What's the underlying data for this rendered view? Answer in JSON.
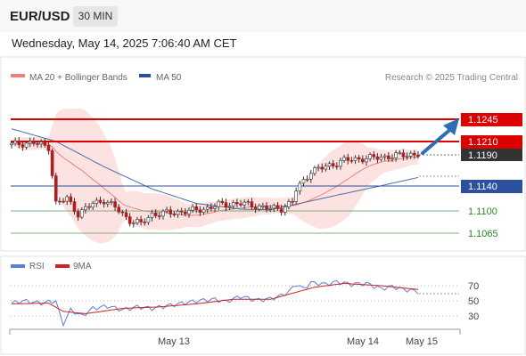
{
  "header": {
    "pair": "EUR/USD",
    "timeframe": "30 MIN"
  },
  "datetime": "Wednesday, May 14, 2025 7:06:40 AM CET",
  "legend": {
    "ma20": "MA 20 + Bollinger Bands",
    "ma50": "MA 50",
    "credit": "Research © 2025 Trading Central"
  },
  "rsi_legend": {
    "rsi": "RSI",
    "ma9": "9MA"
  },
  "colors": {
    "ma20": "#f08080",
    "band": "#fde2e2",
    "ma50": "#4a6fa5",
    "resistance": "#dd0000",
    "support_line": "#2c4f9e",
    "support_green": "#7fb07f",
    "pivot_label": "#2c4f9e",
    "target_label": "#228b22",
    "last_price": "#333333",
    "rsi": "#5b7fd6",
    "rsi_ma": "#cc2222",
    "arrow": "#2e6db4",
    "bull_candle": "#ffffff",
    "bear_candle": "#b11d1d"
  },
  "price_labels": [
    {
      "value": "1.1245",
      "kind": "resistance"
    },
    {
      "value": "1.1210",
      "kind": "resistance"
    },
    {
      "value": "1.1190",
      "kind": "last"
    },
    {
      "value": "1.1140",
      "kind": "pivot"
    },
    {
      "value": "1.1100",
      "kind": "target"
    },
    {
      "value": "1.1065",
      "kind": "target"
    }
  ],
  "rsi_ticks": [
    "70",
    "50",
    "30"
  ],
  "x_labels": [
    "May 13",
    "May 14",
    "May 15"
  ],
  "chart_data": {
    "type": "candlestick",
    "price_ylim": [
      1.1055,
      1.1265
    ],
    "levels": {
      "resistance": [
        1.1245,
        1.121
      ],
      "pivot": 1.114,
      "support": [
        1.11,
        1.1065
      ],
      "last": 1.119
    },
    "keypoints": [
      [
        0,
        1.1205
      ],
      [
        6,
        1.1208
      ],
      [
        10,
        1.1201
      ],
      [
        11,
        1.1158
      ],
      [
        12,
        1.1112
      ],
      [
        15,
        1.112
      ],
      [
        18,
        1.1095
      ],
      [
        22,
        1.1112
      ],
      [
        25,
        1.1117
      ],
      [
        28,
        1.1106
      ],
      [
        32,
        1.1085
      ],
      [
        35,
        1.108
      ],
      [
        38,
        1.1095
      ],
      [
        45,
        1.1098
      ],
      [
        52,
        1.1103
      ],
      [
        56,
        1.111
      ],
      [
        62,
        1.1112
      ],
      [
        70,
        1.1104
      ],
      [
        73,
        1.1104
      ],
      [
        76,
        1.1115
      ],
      [
        77,
        1.1133
      ],
      [
        79,
        1.1148
      ],
      [
        81,
        1.1163
      ],
      [
        85,
        1.117
      ],
      [
        90,
        1.118
      ],
      [
        95,
        1.1183
      ],
      [
        100,
        1.1185
      ],
      [
        107,
        1.1189
      ],
      [
        110,
        1.119
      ]
    ],
    "ma50": [
      [
        0,
        1.123
      ],
      [
        12,
        1.121
      ],
      [
        25,
        1.117
      ],
      [
        38,
        1.1135
      ],
      [
        50,
        1.1112
      ],
      [
        62,
        1.1103
      ],
      [
        70,
        1.1102
      ],
      [
        78,
        1.1112
      ],
      [
        88,
        1.1125
      ],
      [
        100,
        1.114
      ],
      [
        110,
        1.1153
      ]
    ],
    "rsi_ylim": [
      10,
      85
    ],
    "rsi": [
      [
        0,
        47
      ],
      [
        3,
        50
      ],
      [
        8,
        47
      ],
      [
        12,
        50
      ],
      [
        13,
        32
      ],
      [
        14,
        20
      ],
      [
        16,
        38
      ],
      [
        19,
        30
      ],
      [
        22,
        40
      ],
      [
        26,
        43
      ],
      [
        30,
        38
      ],
      [
        34,
        42
      ],
      [
        38,
        40
      ],
      [
        44,
        45
      ],
      [
        50,
        50
      ],
      [
        55,
        52
      ],
      [
        58,
        49
      ],
      [
        62,
        56
      ],
      [
        66,
        51
      ],
      [
        69,
        52
      ],
      [
        72,
        55
      ],
      [
        75,
        62
      ],
      [
        77,
        72
      ],
      [
        79,
        66
      ],
      [
        81,
        74
      ],
      [
        85,
        72
      ],
      [
        88,
        75
      ],
      [
        92,
        72
      ],
      [
        96,
        73
      ],
      [
        100,
        66
      ],
      [
        103,
        69
      ],
      [
        106,
        65
      ],
      [
        108,
        64
      ],
      [
        110,
        62
      ]
    ],
    "rsi_ma": [
      [
        0,
        46
      ],
      [
        10,
        47
      ],
      [
        14,
        36
      ],
      [
        20,
        33
      ],
      [
        30,
        40
      ],
      [
        40,
        42
      ],
      [
        50,
        46
      ],
      [
        60,
        52
      ],
      [
        70,
        52
      ],
      [
        76,
        60
      ],
      [
        82,
        68
      ],
      [
        90,
        73
      ],
      [
        100,
        70
      ],
      [
        106,
        67
      ],
      [
        110,
        65
      ]
    ],
    "x_tick_labels": [
      "May 13",
      "May 14",
      "May 15"
    ]
  }
}
